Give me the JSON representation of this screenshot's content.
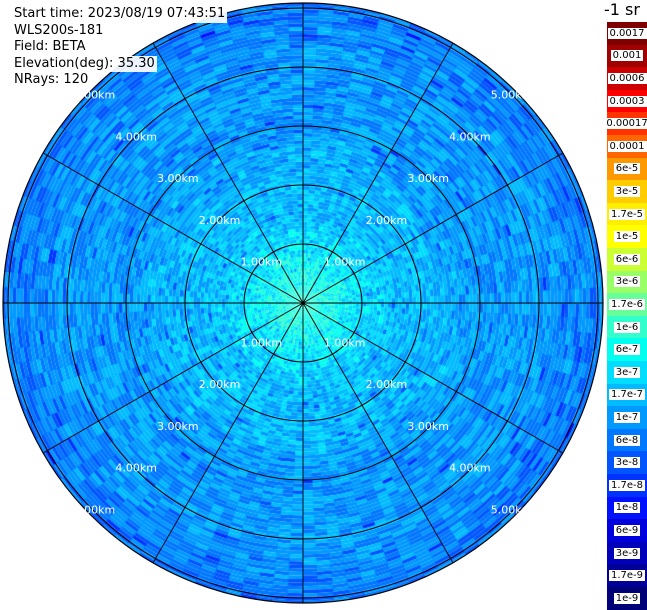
{
  "header": {
    "start_time": "Start time: 2023/08/19 07:43:51",
    "instrument": "WLS200s-181",
    "field": "Field: BETA",
    "elevation": "Elevation(deg): 35.30",
    "nrays": "NRays: 120"
  },
  "chart_data": {
    "type": "heatmap",
    "projection": "polar PPI",
    "field": "BETA",
    "unit_label": "-1 sr",
    "n_rays": 120,
    "range_rings_km": [
      1,
      2,
      3,
      4,
      5
    ],
    "range_ring_labels": [
      "1.00km",
      "2.00km",
      "3.00km",
      "4.00km",
      "5.00km"
    ],
    "radial_spokes": 12,
    "colorbar_labels": [
      "0.0017",
      "0.001",
      "0.0006",
      "0.0003",
      "0.00017",
      "0.0001",
      "6e-5",
      "3e-5",
      "1.7e-5",
      "1e-5",
      "6e-6",
      "3e-6",
      "1.7e-6",
      "1e-6",
      "6e-7",
      "3e-7",
      "1.7e-7",
      "1e-7",
      "6e-8",
      "3e-8",
      "1.7e-8",
      "1e-8",
      "6e-9",
      "3e-9",
      "1.7e-9",
      "1e-9"
    ],
    "colorbar_colors": [
      "#800000",
      "#a00000",
      "#cc0000",
      "#ff0000",
      "#ff3300",
      "#ff6600",
      "#ff9900",
      "#ffcc00",
      "#ffee00",
      "#ffff00",
      "#ccff33",
      "#99ff66",
      "#66ff99",
      "#33ffcc",
      "#00ffee",
      "#00ddff",
      "#00bbff",
      "#0099ff",
      "#0077ff",
      "#0055ff",
      "#0033ff",
      "#0011ff",
      "#0000dd",
      "#0000bb",
      "#000099",
      "#000077"
    ],
    "radial_profile": [
      {
        "range_km": 0.0,
        "value": "1e-6"
      },
      {
        "range_km": 0.5,
        "value": "6e-7"
      },
      {
        "range_km": 1.0,
        "value": "3e-7"
      },
      {
        "range_km": 1.5,
        "value": "1.7e-7"
      },
      {
        "range_km": 2.0,
        "value": "1.7e-7"
      },
      {
        "range_km": 3.0,
        "value": "1e-7"
      },
      {
        "range_km": 4.0,
        "value": "1e-7"
      },
      {
        "range_km": 5.0,
        "value": "6e-8"
      }
    ]
  }
}
